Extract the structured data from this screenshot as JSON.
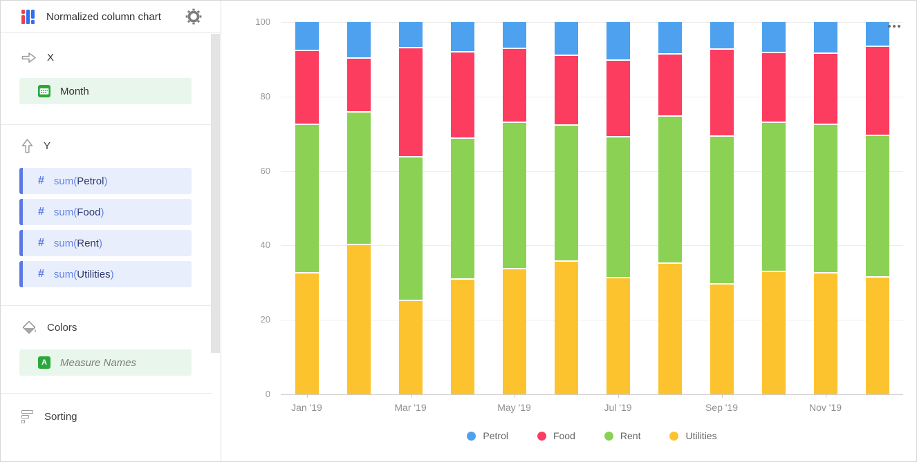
{
  "sidebar": {
    "title": "Normalized column chart",
    "x_section": {
      "label": "X",
      "field": "Month"
    },
    "y_section": {
      "label": "Y",
      "fields": [
        {
          "func": "sum(",
          "name": "Petrol",
          "suffix": ")"
        },
        {
          "func": "sum(",
          "name": "Food",
          "suffix": ")"
        },
        {
          "func": "sum(",
          "name": "Rent",
          "suffix": ")"
        },
        {
          "func": "sum(",
          "name": "Utilities",
          "suffix": ")"
        }
      ]
    },
    "colors_section": {
      "label": "Colors",
      "field": "Measure Names"
    },
    "sorting_section": {
      "label": "Sorting"
    }
  },
  "accent_colors": {
    "dimension_green": "#2ba83b",
    "dimension_pill_bg": "#e9f6ec",
    "measure_blue": "#5b79e6",
    "measure_pill_bg": "#e9eefc"
  },
  "chart_data": {
    "type": "bar",
    "stacked": true,
    "normalized": true,
    "title": "",
    "xlabel": "",
    "ylabel": "",
    "ylim": [
      0,
      100
    ],
    "yticks": [
      0,
      20,
      40,
      60,
      80,
      100
    ],
    "grid": true,
    "legend_position": "bottom",
    "categories": [
      "Jan '19",
      "Feb '19",
      "Mar '19",
      "Apr '19",
      "May '19",
      "Jun '19",
      "Jul '19",
      "Aug '19",
      "Sep '19",
      "Oct '19",
      "Nov '19",
      "Dec '19"
    ],
    "shown_x_labels": [
      "Jan '19",
      "Mar '19",
      "May '19",
      "Jul '19",
      "Sep '19",
      "Nov '19"
    ],
    "stack_order_top_to_bottom": [
      "Petrol",
      "Food",
      "Rent",
      "Utilities"
    ],
    "series": [
      {
        "name": "Petrol",
        "color": "#4da1ee",
        "values": [
          7.4,
          9.5,
          6.7,
          7.8,
          6.9,
          8.7,
          10.1,
          8.4,
          7.1,
          7.9,
          8.2,
          6.3
        ]
      },
      {
        "name": "Food",
        "color": "#fc3d60",
        "values": [
          19.8,
          14.4,
          29.3,
          23.1,
          19.9,
          18.8,
          20.6,
          16.6,
          23.4,
          18.8,
          19.1,
          23.9
        ]
      },
      {
        "name": "Rent",
        "color": "#8bd153",
        "values": [
          40.0,
          35.7,
          38.6,
          37.9,
          39.3,
          36.5,
          37.7,
          39.5,
          39.7,
          40.0,
          39.9,
          38.1
        ]
      },
      {
        "name": "Utilities",
        "color": "#fdc32f",
        "values": [
          32.8,
          40.4,
          25.4,
          31.2,
          33.9,
          36.0,
          31.6,
          35.5,
          29.8,
          33.3,
          32.8,
          31.7
        ]
      }
    ]
  }
}
